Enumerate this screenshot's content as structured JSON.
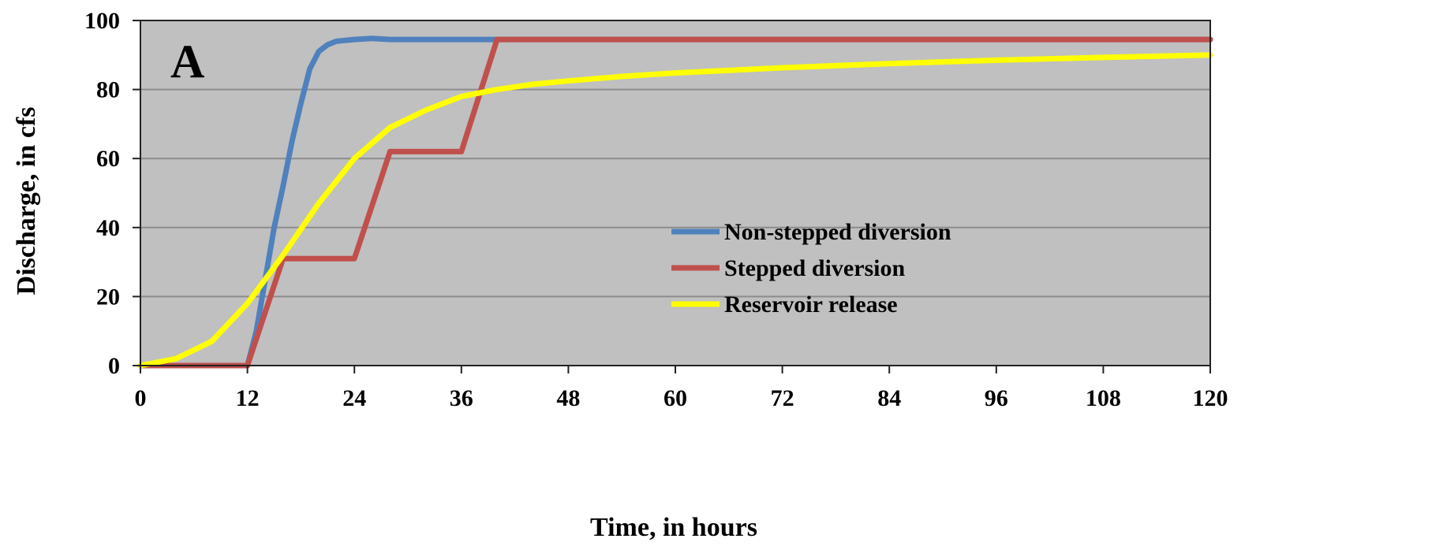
{
  "chart_data": {
    "type": "line",
    "panel_label": "A",
    "xlabel": "Time, in hours",
    "ylabel": "Discharge, in cfs",
    "xlim": [
      0,
      120
    ],
    "ylim": [
      0,
      100
    ],
    "x_ticks": [
      0,
      12,
      24,
      36,
      48,
      60,
      72,
      84,
      96,
      108,
      120
    ],
    "y_ticks": [
      0,
      20,
      40,
      60,
      80,
      100
    ],
    "grid": "horizontal",
    "legend_position": "center-right",
    "plot_background": "#c0c0c0",
    "series": [
      {
        "name": "Non-stepped diversion",
        "color": "#4f81bd",
        "points": [
          [
            0,
            0
          ],
          [
            12,
            0
          ],
          [
            13,
            10
          ],
          [
            14,
            25
          ],
          [
            15,
            40
          ],
          [
            16,
            52
          ],
          [
            17,
            65
          ],
          [
            18,
            76
          ],
          [
            19,
            86
          ],
          [
            20,
            91
          ],
          [
            21,
            93
          ],
          [
            22,
            94
          ],
          [
            24,
            94.5
          ],
          [
            26,
            94.8
          ],
          [
            28,
            94.5
          ],
          [
            40,
            94.5
          ],
          [
            120,
            94.5
          ]
        ]
      },
      {
        "name": "Stepped diversion",
        "color": "#c0504d",
        "points": [
          [
            0,
            0
          ],
          [
            12,
            0
          ],
          [
            16,
            31
          ],
          [
            24,
            31
          ],
          [
            28,
            62
          ],
          [
            36,
            62
          ],
          [
            40,
            94.5
          ],
          [
            120,
            94.5
          ]
        ]
      },
      {
        "name": "Reservoir release",
        "color": "#ffff00",
        "points": [
          [
            0,
            0
          ],
          [
            4,
            2
          ],
          [
            8,
            7
          ],
          [
            12,
            18
          ],
          [
            16,
            32
          ],
          [
            20,
            47
          ],
          [
            24,
            60
          ],
          [
            28,
            69
          ],
          [
            32,
            74
          ],
          [
            36,
            78
          ],
          [
            40,
            80
          ],
          [
            44,
            81.5
          ],
          [
            48,
            82.5
          ],
          [
            54,
            83.8
          ],
          [
            60,
            84.8
          ],
          [
            72,
            86.3
          ],
          [
            84,
            87.5
          ],
          [
            96,
            88.5
          ],
          [
            108,
            89.3
          ],
          [
            120,
            90
          ]
        ]
      }
    ]
  }
}
